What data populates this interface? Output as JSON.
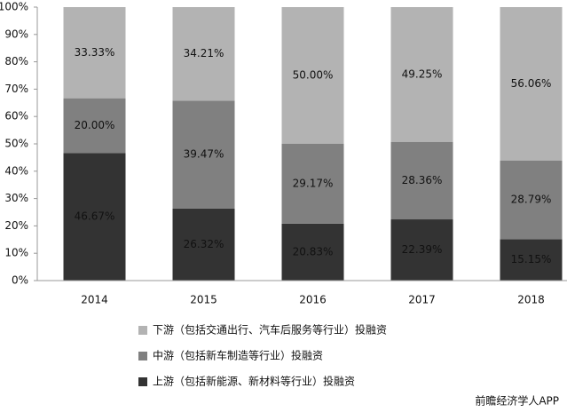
{
  "chart_data": {
    "type": "stacked_bar",
    "categories": [
      "2014",
      "2015",
      "2016",
      "2017",
      "2018"
    ],
    "series": [
      {
        "name": "上游（包括新能源、新材料等行业）投融资",
        "color": "#333333",
        "values": [
          46.67,
          26.32,
          20.83,
          22.39,
          15.15
        ],
        "value_labels": [
          "46.67%",
          "26.32%",
          "20.83%",
          "22.39%",
          "15.15%"
        ]
      },
      {
        "name": "中游（包括新车制造等行业）投融资",
        "color": "#808080",
        "values": [
          20.0,
          39.47,
          29.17,
          28.36,
          28.79
        ],
        "value_labels": [
          "20.00%",
          "39.47%",
          "29.17%",
          "28.36%",
          "28.79%"
        ]
      },
      {
        "name": "下游（包括交通出行、汽车后服务等行业）投融资",
        "color": "#b3b3b3",
        "values": [
          33.33,
          34.21,
          50.0,
          49.25,
          56.06
        ],
        "value_labels": [
          "33.33%",
          "34.21%",
          "50.00%",
          "49.25%",
          "56.06%"
        ]
      }
    ],
    "ylim": [
      0,
      100
    ],
    "yticks": [
      {
        "value": 0,
        "label": "0%"
      },
      {
        "value": 10,
        "label": "10%"
      },
      {
        "value": 20,
        "label": "20%"
      },
      {
        "value": 30,
        "label": "30%"
      },
      {
        "value": 40,
        "label": "40%"
      },
      {
        "value": 50,
        "label": "50%"
      },
      {
        "value": 60,
        "label": "60%"
      },
      {
        "value": 70,
        "label": "70%"
      },
      {
        "value": 80,
        "label": "80%"
      },
      {
        "value": 90,
        "label": "90%"
      },
      {
        "value": 100,
        "label": "100%"
      }
    ],
    "source": "前瞻经济学人APP"
  }
}
